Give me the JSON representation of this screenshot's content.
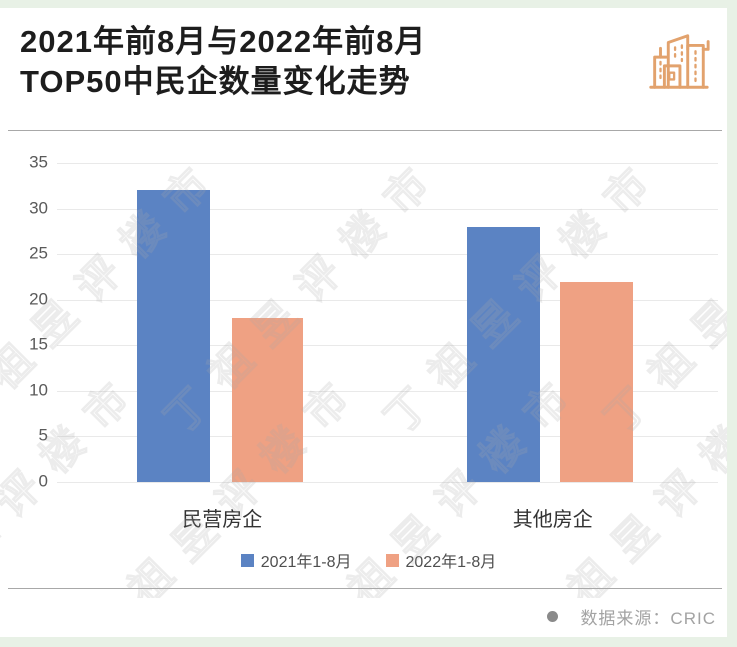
{
  "header": {
    "title_line1": "2021年前8月与2022年前8月",
    "title_line2": "TOP50中民企数量变化走势",
    "logo_icon": "buildings-icon"
  },
  "chart_data": {
    "type": "bar",
    "categories": [
      "民营房企",
      "其他房企"
    ],
    "series": [
      {
        "name": "2021年1-8月",
        "color": "#5b83c3",
        "values": [
          32,
          28
        ]
      },
      {
        "name": "2022年1-8月",
        "color": "#efa183",
        "values": [
          18,
          22
        ]
      }
    ],
    "title": "2021年前8月与2022年前8月TOP50中民企数量变化走势",
    "xlabel": "",
    "ylabel": "",
    "ylim": [
      0,
      35
    ],
    "yticks": [
      35,
      30,
      25,
      20,
      15,
      10,
      5,
      0
    ],
    "grid": true,
    "legend_position": "bottom"
  },
  "watermark": {
    "text": "丁祖昱评楼市"
  },
  "footer": {
    "source_label": "数据来源：CRIC"
  },
  "colors": {
    "frame_green": "#e8f1e6",
    "bar_blue": "#5b83c3",
    "bar_orange": "#efa183",
    "icon_orange": "#e2a26d",
    "divider_gray": "#a8a8a8",
    "gridline_gray": "#e9e9e9",
    "footer_gray": "#a3a3a3"
  }
}
